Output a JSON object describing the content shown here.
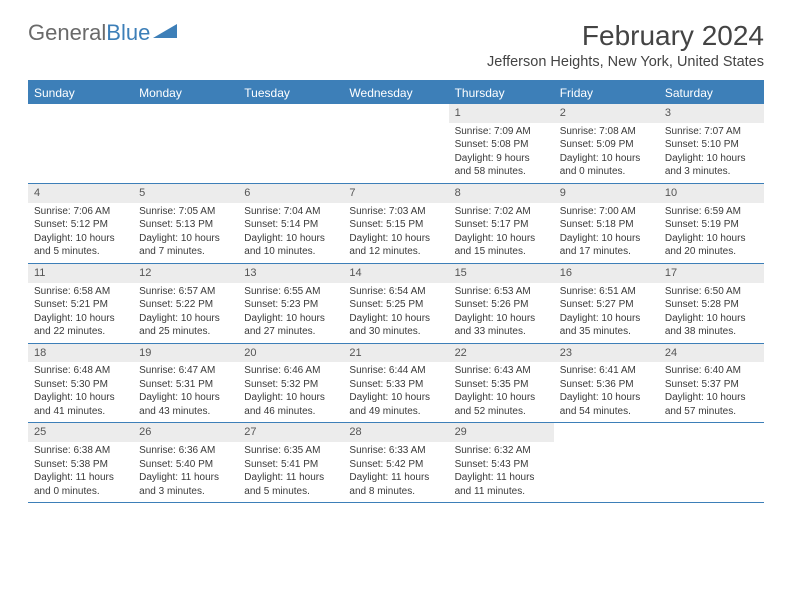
{
  "logo": {
    "text1": "General",
    "text2": "Blue"
  },
  "title": "February 2024",
  "subtitle": "Jefferson Heights, New York, United States",
  "colors": {
    "header_bg": "#3d7fb8",
    "header_text": "#ffffff",
    "num_bg": "#ececec",
    "border": "#3d7fb8",
    "body_text": "#3a3a3a"
  },
  "day_headers": [
    "Sunday",
    "Monday",
    "Tuesday",
    "Wednesday",
    "Thursday",
    "Friday",
    "Saturday"
  ],
  "weeks": [
    [
      {
        "n": "",
        "sr": "",
        "ss": "",
        "dl": ""
      },
      {
        "n": "",
        "sr": "",
        "ss": "",
        "dl": ""
      },
      {
        "n": "",
        "sr": "",
        "ss": "",
        "dl": ""
      },
      {
        "n": "",
        "sr": "",
        "ss": "",
        "dl": ""
      },
      {
        "n": "1",
        "sr": "Sunrise: 7:09 AM",
        "ss": "Sunset: 5:08 PM",
        "dl": "Daylight: 9 hours and 58 minutes."
      },
      {
        "n": "2",
        "sr": "Sunrise: 7:08 AM",
        "ss": "Sunset: 5:09 PM",
        "dl": "Daylight: 10 hours and 0 minutes."
      },
      {
        "n": "3",
        "sr": "Sunrise: 7:07 AM",
        "ss": "Sunset: 5:10 PM",
        "dl": "Daylight: 10 hours and 3 minutes."
      }
    ],
    [
      {
        "n": "4",
        "sr": "Sunrise: 7:06 AM",
        "ss": "Sunset: 5:12 PM",
        "dl": "Daylight: 10 hours and 5 minutes."
      },
      {
        "n": "5",
        "sr": "Sunrise: 7:05 AM",
        "ss": "Sunset: 5:13 PM",
        "dl": "Daylight: 10 hours and 7 minutes."
      },
      {
        "n": "6",
        "sr": "Sunrise: 7:04 AM",
        "ss": "Sunset: 5:14 PM",
        "dl": "Daylight: 10 hours and 10 minutes."
      },
      {
        "n": "7",
        "sr": "Sunrise: 7:03 AM",
        "ss": "Sunset: 5:15 PM",
        "dl": "Daylight: 10 hours and 12 minutes."
      },
      {
        "n": "8",
        "sr": "Sunrise: 7:02 AM",
        "ss": "Sunset: 5:17 PM",
        "dl": "Daylight: 10 hours and 15 minutes."
      },
      {
        "n": "9",
        "sr": "Sunrise: 7:00 AM",
        "ss": "Sunset: 5:18 PM",
        "dl": "Daylight: 10 hours and 17 minutes."
      },
      {
        "n": "10",
        "sr": "Sunrise: 6:59 AM",
        "ss": "Sunset: 5:19 PM",
        "dl": "Daylight: 10 hours and 20 minutes."
      }
    ],
    [
      {
        "n": "11",
        "sr": "Sunrise: 6:58 AM",
        "ss": "Sunset: 5:21 PM",
        "dl": "Daylight: 10 hours and 22 minutes."
      },
      {
        "n": "12",
        "sr": "Sunrise: 6:57 AM",
        "ss": "Sunset: 5:22 PM",
        "dl": "Daylight: 10 hours and 25 minutes."
      },
      {
        "n": "13",
        "sr": "Sunrise: 6:55 AM",
        "ss": "Sunset: 5:23 PM",
        "dl": "Daylight: 10 hours and 27 minutes."
      },
      {
        "n": "14",
        "sr": "Sunrise: 6:54 AM",
        "ss": "Sunset: 5:25 PM",
        "dl": "Daylight: 10 hours and 30 minutes."
      },
      {
        "n": "15",
        "sr": "Sunrise: 6:53 AM",
        "ss": "Sunset: 5:26 PM",
        "dl": "Daylight: 10 hours and 33 minutes."
      },
      {
        "n": "16",
        "sr": "Sunrise: 6:51 AM",
        "ss": "Sunset: 5:27 PM",
        "dl": "Daylight: 10 hours and 35 minutes."
      },
      {
        "n": "17",
        "sr": "Sunrise: 6:50 AM",
        "ss": "Sunset: 5:28 PM",
        "dl": "Daylight: 10 hours and 38 minutes."
      }
    ],
    [
      {
        "n": "18",
        "sr": "Sunrise: 6:48 AM",
        "ss": "Sunset: 5:30 PM",
        "dl": "Daylight: 10 hours and 41 minutes."
      },
      {
        "n": "19",
        "sr": "Sunrise: 6:47 AM",
        "ss": "Sunset: 5:31 PM",
        "dl": "Daylight: 10 hours and 43 minutes."
      },
      {
        "n": "20",
        "sr": "Sunrise: 6:46 AM",
        "ss": "Sunset: 5:32 PM",
        "dl": "Daylight: 10 hours and 46 minutes."
      },
      {
        "n": "21",
        "sr": "Sunrise: 6:44 AM",
        "ss": "Sunset: 5:33 PM",
        "dl": "Daylight: 10 hours and 49 minutes."
      },
      {
        "n": "22",
        "sr": "Sunrise: 6:43 AM",
        "ss": "Sunset: 5:35 PM",
        "dl": "Daylight: 10 hours and 52 minutes."
      },
      {
        "n": "23",
        "sr": "Sunrise: 6:41 AM",
        "ss": "Sunset: 5:36 PM",
        "dl": "Daylight: 10 hours and 54 minutes."
      },
      {
        "n": "24",
        "sr": "Sunrise: 6:40 AM",
        "ss": "Sunset: 5:37 PM",
        "dl": "Daylight: 10 hours and 57 minutes."
      }
    ],
    [
      {
        "n": "25",
        "sr": "Sunrise: 6:38 AM",
        "ss": "Sunset: 5:38 PM",
        "dl": "Daylight: 11 hours and 0 minutes."
      },
      {
        "n": "26",
        "sr": "Sunrise: 6:36 AM",
        "ss": "Sunset: 5:40 PM",
        "dl": "Daylight: 11 hours and 3 minutes."
      },
      {
        "n": "27",
        "sr": "Sunrise: 6:35 AM",
        "ss": "Sunset: 5:41 PM",
        "dl": "Daylight: 11 hours and 5 minutes."
      },
      {
        "n": "28",
        "sr": "Sunrise: 6:33 AM",
        "ss": "Sunset: 5:42 PM",
        "dl": "Daylight: 11 hours and 8 minutes."
      },
      {
        "n": "29",
        "sr": "Sunrise: 6:32 AM",
        "ss": "Sunset: 5:43 PM",
        "dl": "Daylight: 11 hours and 11 minutes."
      },
      {
        "n": "",
        "sr": "",
        "ss": "",
        "dl": ""
      },
      {
        "n": "",
        "sr": "",
        "ss": "",
        "dl": ""
      }
    ]
  ]
}
